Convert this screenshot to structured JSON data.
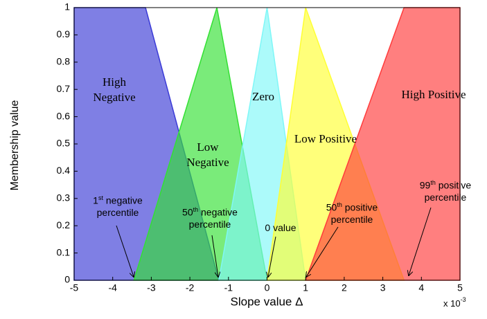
{
  "chart_data": {
    "type": "area",
    "xlabel": "Slope  value  Δ",
    "ylabel": "Membership value",
    "x_multiplier": {
      "base": "x 10",
      "exponent": "-3"
    },
    "xlim": [
      -5,
      5
    ],
    "ylim": [
      0,
      1
    ],
    "xticks": [
      -5,
      -4,
      -3,
      -2,
      -1,
      0,
      1,
      2,
      3,
      4,
      5
    ],
    "yticks": [
      0,
      0.1,
      0.2,
      0.3,
      0.4,
      0.5,
      0.6,
      0.7,
      0.8,
      0.9,
      1
    ],
    "series": [
      {
        "name": "High Negative",
        "color": "#3a3ad6",
        "x": [
          -5,
          -5,
          -3.15,
          -1.25
        ],
        "y": [
          0,
          1,
          1,
          0
        ]
      },
      {
        "name": "Low Negative",
        "color": "#33e033",
        "x": [
          -3.45,
          -1.3,
          0
        ],
        "y": [
          0,
          1,
          0
        ]
      },
      {
        "name": "Zero",
        "color": "#7ff7f7",
        "x": [
          -1.25,
          0,
          1
        ],
        "y": [
          0,
          1,
          0
        ]
      },
      {
        "name": "Low Positive",
        "color": "#ffff33",
        "x": [
          0,
          1,
          3.55
        ],
        "y": [
          0,
          1,
          0
        ]
      },
      {
        "name": "High Positive",
        "color": "#ff3b3b",
        "x": [
          1,
          3.55,
          5,
          5
        ],
        "y": [
          0,
          1,
          1,
          0
        ]
      }
    ],
    "annotations": [
      {
        "number": "1",
        "suffix": "st",
        "text": "negative percentile"
      },
      {
        "number": "50",
        "suffix": "th",
        "text": "negative percentile"
      },
      {
        "number": "0",
        "suffix": "",
        "text": "value"
      },
      {
        "number": "50",
        "suffix": "th",
        "text": "positive percentile"
      },
      {
        "number": "99",
        "suffix": "th",
        "text": "positive percentile"
      }
    ]
  }
}
